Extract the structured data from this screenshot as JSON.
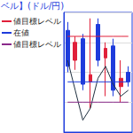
{
  "chart_data": {
    "type": "candlestick",
    "title": "ベル】(ドル/円)",
    "categories": [
      null,
      null,
      null,
      null,
      null,
      null,
      null,
      null,
      null
    ],
    "ylim": [
      0,
      100
    ],
    "yticks": [
      0,
      25,
      50,
      75,
      100
    ],
    "grid": true,
    "tick_labels": false,
    "legend": "upper left",
    "series": [
      {
        "type": "candlestick",
        "values": [
          [
            85,
            55,
            50,
            92
          ],
          [
            60,
            75,
            52,
            80
          ],
          [
            78,
            40,
            35,
            82
          ],
          [
            42,
            48,
            20,
            95
          ],
          [
            90,
            60,
            55,
            95
          ],
          [
            62,
            70,
            30,
            75
          ],
          [
            72,
            35,
            30,
            78
          ],
          [
            38,
            45,
            25,
            60
          ],
          [
            50,
            42,
            38,
            55
          ]
        ],
        "colors": [
          "#1e3cdc",
          "#e0203a",
          "#1e3cdc",
          "#e0203a",
          "#1e3cdc",
          "#e0203a",
          "#1e3cdc",
          "#e0203a",
          "#1e3cdc"
        ]
      },
      {
        "type": "line",
        "color": "#203040",
        "line_style": "solid",
        "values": [
          60,
          35,
          10,
          20,
          45,
          55,
          40,
          30,
          35
        ]
      },
      {
        "type": "line",
        "name": "値目標レベル",
        "color": "#e0203a",
        "line_style": "solid",
        "values": [
          80,
          80,
          80,
          80,
          80,
          80,
          80,
          80,
          80
        ]
      },
      {
        "type": "line",
        "name": "在値",
        "color": "#1e3cdc",
        "line_style": "solid",
        "values": [
          42,
          42,
          42,
          42,
          42,
          42,
          42,
          42,
          42
        ]
      },
      {
        "type": "line",
        "name": "値目標レベル",
        "color": "#8a2a8a",
        "line_style": "solid",
        "values": [
          25,
          25,
          25,
          25,
          25,
          25,
          25,
          25,
          25
        ]
      }
    ]
  }
}
